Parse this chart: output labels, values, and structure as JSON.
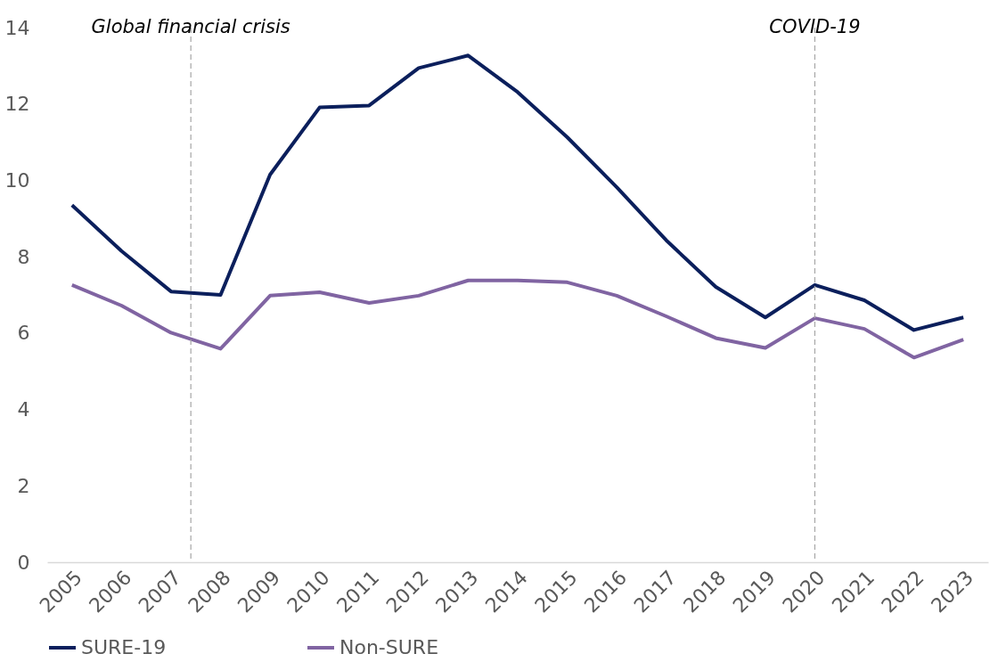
{
  "chart_data": {
    "type": "line",
    "x": [
      2005,
      2006,
      2007,
      2008,
      2009,
      2010,
      2011,
      2012,
      2013,
      2014,
      2015,
      2016,
      2017,
      2018,
      2019,
      2020,
      2021,
      2022,
      2023
    ],
    "series": [
      {
        "name": "SURE-19",
        "color": "#0b1f5c",
        "values": [
          9.35,
          8.15,
          7.09,
          7.0,
          10.15,
          11.91,
          11.96,
          12.94,
          13.27,
          12.31,
          11.13,
          9.82,
          8.43,
          7.21,
          6.41,
          7.26,
          6.86,
          6.08,
          6.41
        ]
      },
      {
        "name": "Non-SURE",
        "color": "#8064a2",
        "values": [
          7.26,
          6.72,
          6.01,
          5.59,
          6.98,
          7.07,
          6.79,
          6.98,
          7.38,
          7.38,
          7.33,
          6.98,
          6.44,
          5.87,
          5.61,
          6.39,
          6.11,
          5.36,
          5.83
        ]
      }
    ],
    "xlim": [
      2004.5,
      2023.5
    ],
    "xticks": [
      2005,
      2006,
      2007,
      2008,
      2009,
      2010,
      2011,
      2012,
      2013,
      2014,
      2015,
      2016,
      2017,
      2018,
      2019,
      2020,
      2021,
      2022,
      2023
    ],
    "ylim": [
      0,
      14
    ],
    "yticks": [
      0,
      2,
      4,
      6,
      8,
      10,
      12,
      14
    ],
    "ref_lines": [
      {
        "axis": "x",
        "value": 2007.4,
        "label": "Global financial crisis",
        "color": "#a6a6a6",
        "line_style": "dashed"
      },
      {
        "axis": "x",
        "value": 2020,
        "label": "COVID-19",
        "color": "#a6a6a6",
        "line_style": "dashed"
      }
    ],
    "grid": false,
    "legend": "bottom"
  }
}
